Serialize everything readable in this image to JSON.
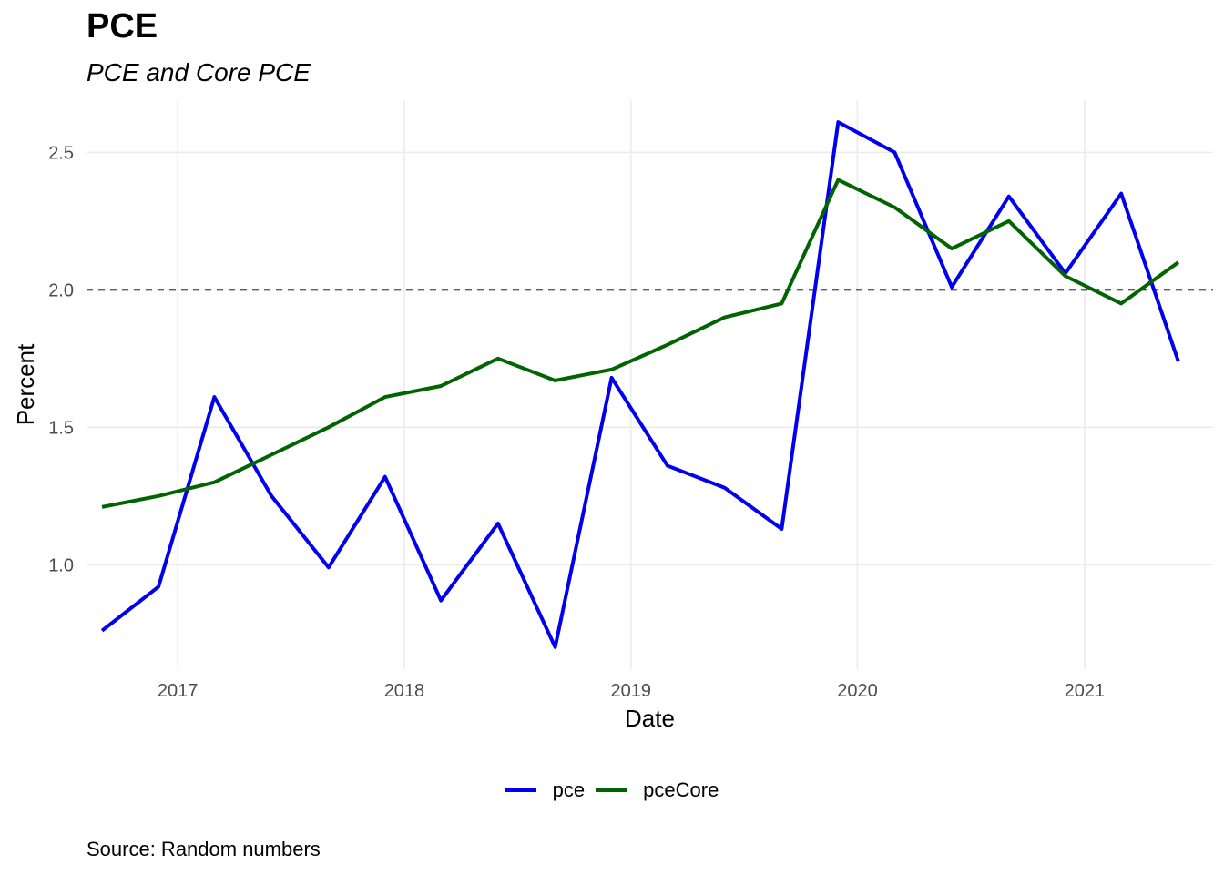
{
  "title": "PCE",
  "subtitle": "PCE and Core PCE",
  "caption": "Source: Random numbers",
  "chart_data": {
    "type": "line",
    "title": "PCE",
    "subtitle": "PCE and Core PCE",
    "xlabel": "Date",
    "ylabel": "Percent",
    "x": [
      "2016-09-01",
      "2016-12-01",
      "2017-03-01",
      "2017-06-01",
      "2017-09-01",
      "2017-12-01",
      "2018-03-01",
      "2018-06-01",
      "2018-09-01",
      "2018-12-01",
      "2019-03-01",
      "2019-06-01",
      "2019-09-01",
      "2019-12-01",
      "2020-03-01",
      "2020-06-01",
      "2020-09-01",
      "2020-12-01",
      "2021-03-01",
      "2021-06-01"
    ],
    "series": [
      {
        "name": "pce",
        "color": "#0000ee",
        "values": [
          0.76,
          0.92,
          1.61,
          1.25,
          0.99,
          1.32,
          0.87,
          1.15,
          0.7,
          1.68,
          1.36,
          1.28,
          1.13,
          2.61,
          2.5,
          2.01,
          2.34,
          2.06,
          2.35,
          1.74
        ]
      },
      {
        "name": "pceCore",
        "color": "#006400",
        "values": [
          1.21,
          1.25,
          1.3,
          1.4,
          1.5,
          1.61,
          1.65,
          1.75,
          1.67,
          1.71,
          1.8,
          1.9,
          1.95,
          2.4,
          2.3,
          2.15,
          2.25,
          2.05,
          1.95,
          2.1
        ]
      }
    ],
    "x_ticks": [
      "2017",
      "2018",
      "2019",
      "2020",
      "2021"
    ],
    "y_ticks": [
      "1.0",
      "1.5",
      "2.0",
      "2.5"
    ],
    "ylim": [
      0.62,
      2.69
    ],
    "xlim": [
      "2016-08-07",
      "2021-07-27"
    ],
    "reference_line": {
      "y": 2.0,
      "style": "dashed",
      "color": "#000000"
    },
    "grid": true,
    "legend_position": "bottom"
  }
}
